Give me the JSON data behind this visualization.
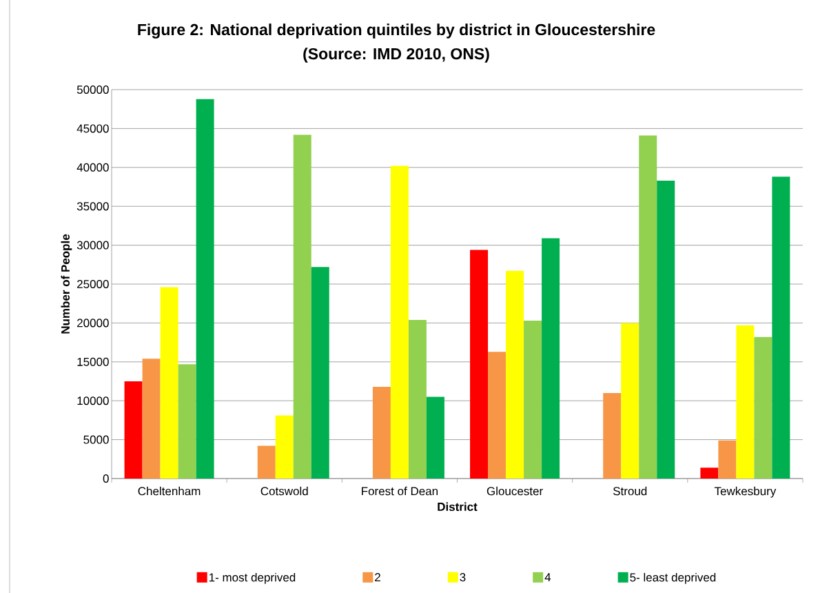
{
  "chart_data": {
    "type": "bar",
    "title": "Figure 2: National deprivation quintiles by district in Gloucestershire",
    "subtitle": "(Source: IMD 2010, ONS)",
    "xlabel": "District",
    "ylabel": "Number of People",
    "categories": [
      "Cheltenham",
      "Cotswold",
      "Forest of Dean",
      "Gloucester",
      "Stroud",
      "Tewkesbury"
    ],
    "series": [
      {
        "name": "1- most deprived",
        "color": "#ff0000",
        "values": [
          12500,
          0,
          0,
          29400,
          0,
          1400
        ]
      },
      {
        "name": "2",
        "color": "#f79646",
        "values": [
          15400,
          4200,
          11800,
          16300,
          11000,
          4900
        ]
      },
      {
        "name": "3",
        "color": "#ffff00",
        "values": [
          24600,
          8100,
          40200,
          26700,
          20000,
          19700
        ]
      },
      {
        "name": "4",
        "color": "#92d050",
        "values": [
          14700,
          44200,
          20400,
          20300,
          44100,
          18200
        ]
      },
      {
        "name": "5- least deprived",
        "color": "#00b050",
        "values": [
          48800,
          27200,
          10500,
          30900,
          38300,
          38800
        ]
      }
    ],
    "ylim": [
      0,
      50000
    ],
    "yticks": [
      0,
      5000,
      10000,
      15000,
      20000,
      25000,
      30000,
      35000,
      40000,
      45000,
      50000
    ],
    "grid": "y",
    "legend": "bottom"
  }
}
